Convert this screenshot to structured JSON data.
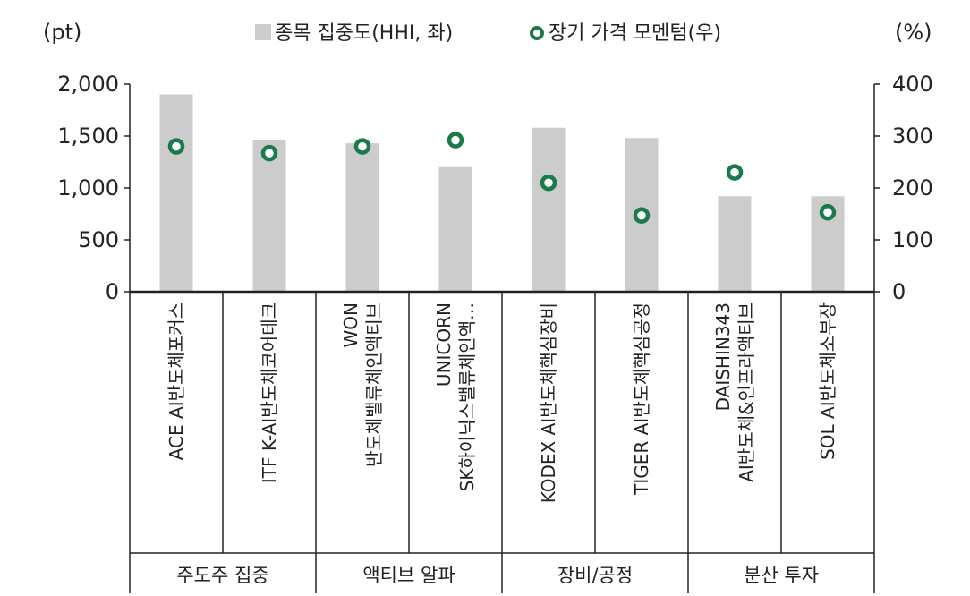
{
  "chart_data": {
    "type": "bar",
    "left_unit": "(pt)",
    "right_unit": "(%)",
    "left_ylim": [
      0,
      2000
    ],
    "right_ylim": [
      0,
      400
    ],
    "left_ticks": [
      0,
      500,
      1000,
      1500,
      2000
    ],
    "left_tick_labels": [
      "0",
      "500",
      "1,000",
      "1,500",
      "2,000"
    ],
    "right_ticks": [
      0,
      100,
      200,
      300,
      400
    ],
    "right_tick_labels": [
      "0",
      "100",
      "200",
      "300",
      "400"
    ],
    "categories": [
      [
        "ACE AI반도체포커스"
      ],
      [
        "ITF K-AI반도체코어테크"
      ],
      [
        "WON",
        "반도체밸류체인액티브"
      ],
      [
        "UNICORN",
        "SK하이닉스밸류체인액…"
      ],
      [
        "KODEX AI반도체핵심장비"
      ],
      [
        "TIGER AI반도체핵심공정"
      ],
      [
        "DAISHIN343",
        "AI반도체&인프라액티브"
      ],
      [
        "SOL AI반도체소부장"
      ]
    ],
    "groups": [
      {
        "label": "주도주 집중",
        "count": 2
      },
      {
        "label": "액티브 알파",
        "count": 2
      },
      {
        "label": "장비/공정",
        "count": 2
      },
      {
        "label": "분산 투자",
        "count": 2
      }
    ],
    "series": [
      {
        "name": "종목 집중도(HHI, 좌)",
        "type": "bar",
        "axis": "left",
        "color": "#cccccc",
        "values": [
          1900,
          1460,
          1430,
          1200,
          1580,
          1480,
          920,
          920
        ]
      },
      {
        "name": "장기 가격 모멘텀(우)",
        "type": "scatter",
        "axis": "right",
        "color": "#1a7a4a",
        "values": [
          280,
          267,
          280,
          292,
          210,
          147,
          230,
          153
        ]
      }
    ],
    "grid": false,
    "legend_position": "top"
  }
}
